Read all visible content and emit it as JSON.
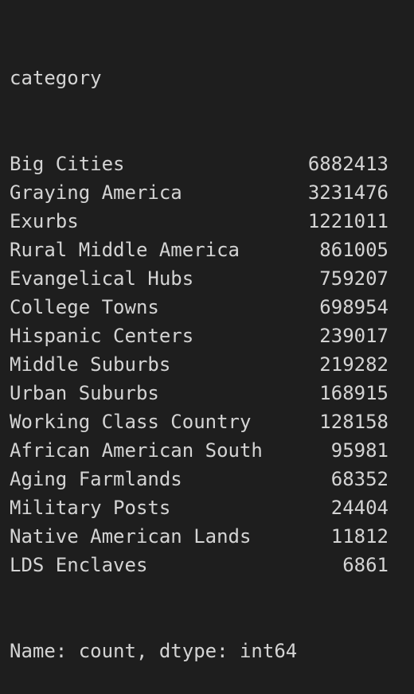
{
  "header": "category",
  "rows": [
    {
      "label": "Big Cities",
      "count": 6882413
    },
    {
      "label": "Graying America",
      "count": 3231476
    },
    {
      "label": "Exurbs",
      "count": 1221011
    },
    {
      "label": "Rural Middle America",
      "count": 861005
    },
    {
      "label": "Evangelical Hubs",
      "count": 759207
    },
    {
      "label": "College Towns",
      "count": 698954
    },
    {
      "label": "Hispanic Centers",
      "count": 239017
    },
    {
      "label": "Middle Suburbs",
      "count": 219282
    },
    {
      "label": "Urban Suburbs",
      "count": 168915
    },
    {
      "label": "Working Class Country",
      "count": 128158
    },
    {
      "label": "African American South",
      "count": 95981
    },
    {
      "label": "Aging Farmlands",
      "count": 68352
    },
    {
      "label": "Military Posts",
      "count": 24404
    },
    {
      "label": "Native American Lands",
      "count": 11812
    },
    {
      "label": "LDS Enclaves",
      "count": 6861
    }
  ],
  "footer": "Name: count, dtype: int64"
}
